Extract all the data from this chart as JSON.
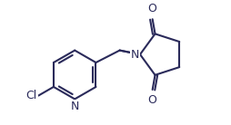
{
  "bg_color": "#ffffff",
  "line_color": "#2a2a5a",
  "atom_color": "#2a2a5a",
  "line_width": 1.5,
  "font_size": 9,
  "figsize": [
    2.54,
    1.38
  ],
  "dpi": 100,
  "xlim": [
    0.5,
    6.2
  ],
  "ylim": [
    0.4,
    3.9
  ]
}
